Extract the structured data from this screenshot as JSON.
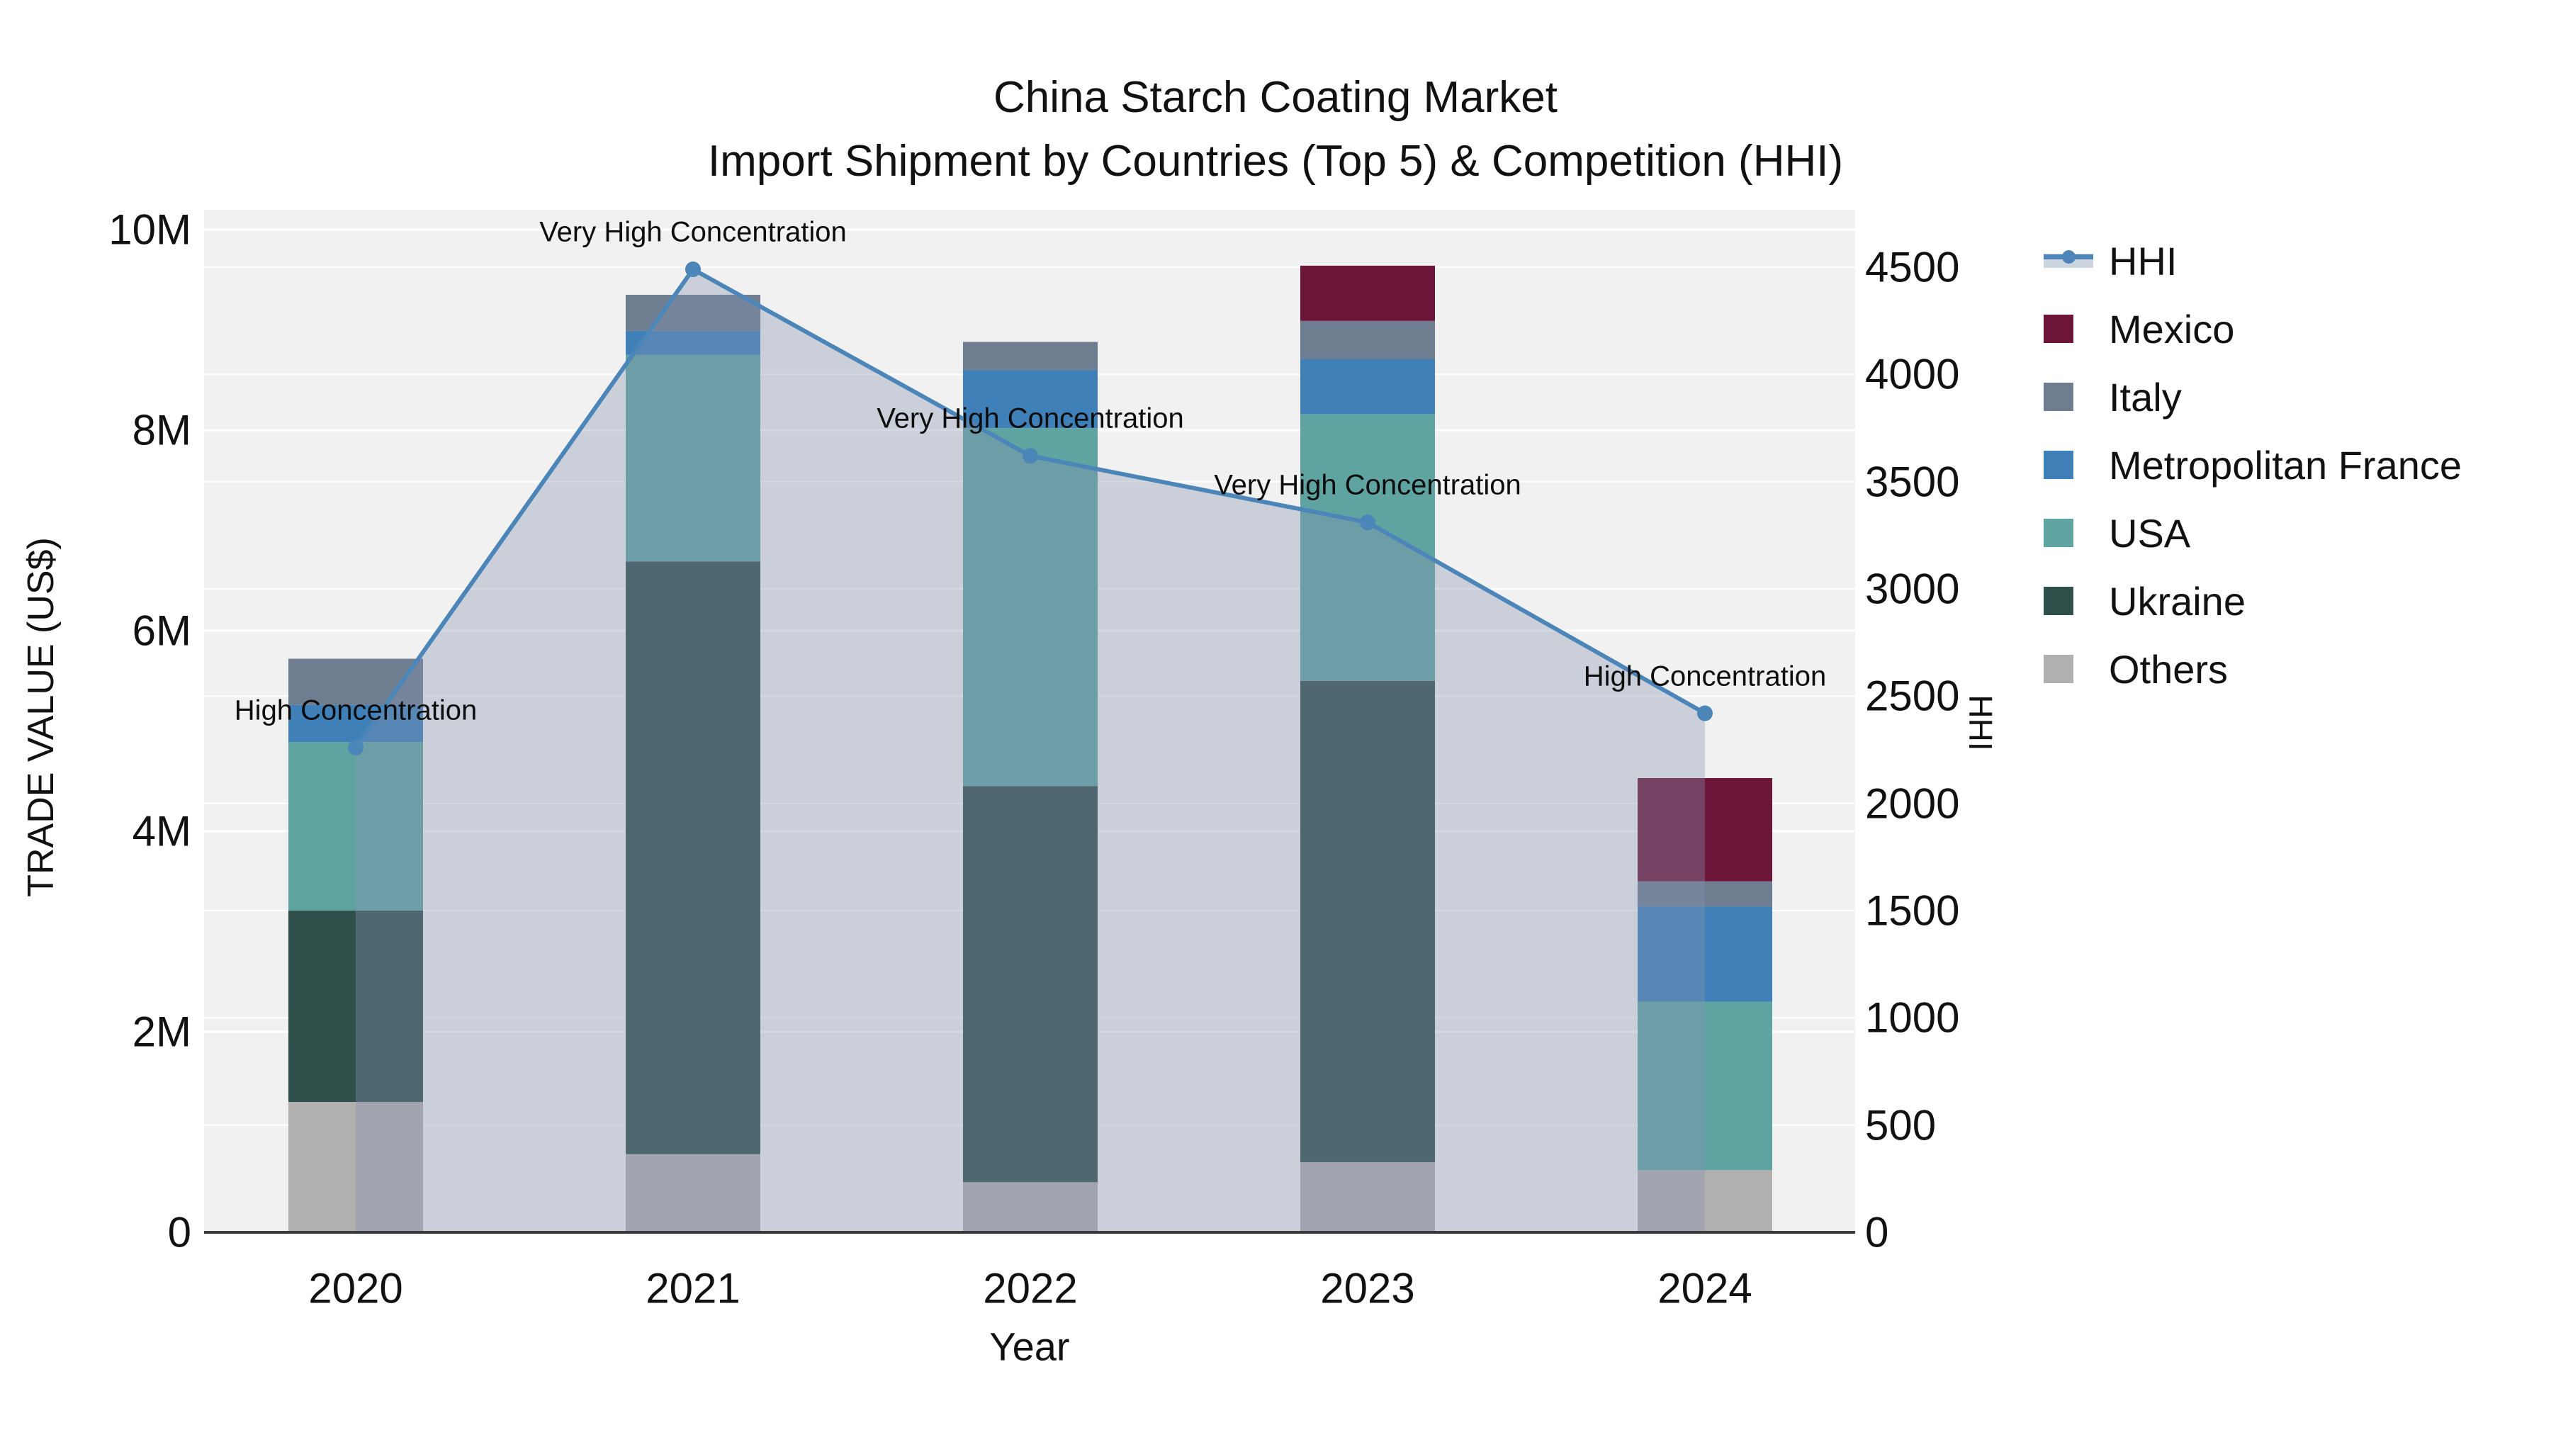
{
  "title": {
    "line1": "China Starch Coating Market",
    "line2": "Import Shipment by Countries (Top 5) & Competition (HHI)"
  },
  "axes": {
    "left": {
      "title": "TRADE VALUE (US$)",
      "tick_labels": [
        "0",
        "2M",
        "4M",
        "6M",
        "8M",
        "10M"
      ],
      "tick_values_millions": [
        0,
        2,
        4,
        6,
        8,
        10
      ],
      "range_millions": [
        0,
        10
      ]
    },
    "right": {
      "title": "HHI",
      "tick_labels": [
        "0",
        "500",
        "1000",
        "1500",
        "2000",
        "2500",
        "3000",
        "3500",
        "4000",
        "4500"
      ],
      "tick_values": [
        0,
        500,
        1000,
        1500,
        2000,
        2500,
        3000,
        3500,
        4000,
        4500
      ],
      "range": [
        0,
        4500
      ]
    },
    "x": {
      "title": "Year",
      "tick_labels": [
        "2020",
        "2021",
        "2022",
        "2023",
        "2024"
      ]
    }
  },
  "legend": {
    "items": [
      {
        "label": "HHI",
        "type": "line",
        "color": "#4c86b9"
      },
      {
        "label": "Mexico",
        "type": "swatch",
        "color": "#6c1539"
      },
      {
        "label": "Italy",
        "type": "swatch",
        "color": "#6f7d90"
      },
      {
        "label": "Metropolitan France",
        "type": "swatch",
        "color": "#4080b8"
      },
      {
        "label": "USA",
        "type": "swatch",
        "color": "#60a4a1"
      },
      {
        "label": "Ukraine",
        "type": "swatch",
        "color": "#2f4f4b"
      },
      {
        "label": "Others",
        "type": "swatch",
        "color": "#b2b0af"
      }
    ]
  },
  "chart_data": {
    "type": "bar+line",
    "title": "China Starch Coating Market – Import Shipment by Countries (Top 5) & Competition (HHI)",
    "categories": [
      "2020",
      "2021",
      "2022",
      "2023",
      "2024"
    ],
    "bar_unit": "million US$",
    "stack_order_bottom_to_top": [
      "Others",
      "Ukraine",
      "USA",
      "Metropolitan France",
      "Italy",
      "Mexico"
    ],
    "series": [
      {
        "name": "Others",
        "values": [
          1.3,
          0.78,
          0.5,
          0.7,
          0.62
        ],
        "color": "#b2b0af"
      },
      {
        "name": "Ukraine",
        "values": [
          1.91,
          5.91,
          3.95,
          4.8,
          0
        ],
        "color": "#2f4f4b"
      },
      {
        "name": "USA",
        "values": [
          1.68,
          2.06,
          3.57,
          2.66,
          1.68
        ],
        "color": "#60a4a1"
      },
      {
        "name": "Metropolitan France",
        "values": [
          0.37,
          0.24,
          0.58,
          0.55,
          0.95
        ],
        "color": "#4080b8"
      },
      {
        "name": "Italy",
        "values": [
          0.46,
          0.36,
          0.28,
          0.38,
          0.25
        ],
        "color": "#6f7d90"
      },
      {
        "name": "Mexico",
        "values": [
          0,
          0,
          0,
          0.55,
          1.03
        ],
        "color": "#6c1539"
      }
    ],
    "line_series": {
      "name": "HHI",
      "axis": "right",
      "values": [
        2260,
        4490,
        3620,
        3310,
        2420
      ],
      "color": "#4c86b9",
      "area_fill": "rgba(134,148,178,0.36)"
    },
    "annotations": [
      {
        "x": "2020",
        "label": "High Concentration"
      },
      {
        "x": "2021",
        "label": "Very High Concentration"
      },
      {
        "x": "2022",
        "label": "Very High Concentration"
      },
      {
        "x": "2023",
        "label": "Very High Concentration"
      },
      {
        "x": "2024",
        "label": "High Concentration"
      }
    ],
    "ylim_left_millions": [
      0,
      10
    ],
    "ylim_right": [
      0,
      4500
    ],
    "grid": true,
    "legend_position": "right"
  }
}
